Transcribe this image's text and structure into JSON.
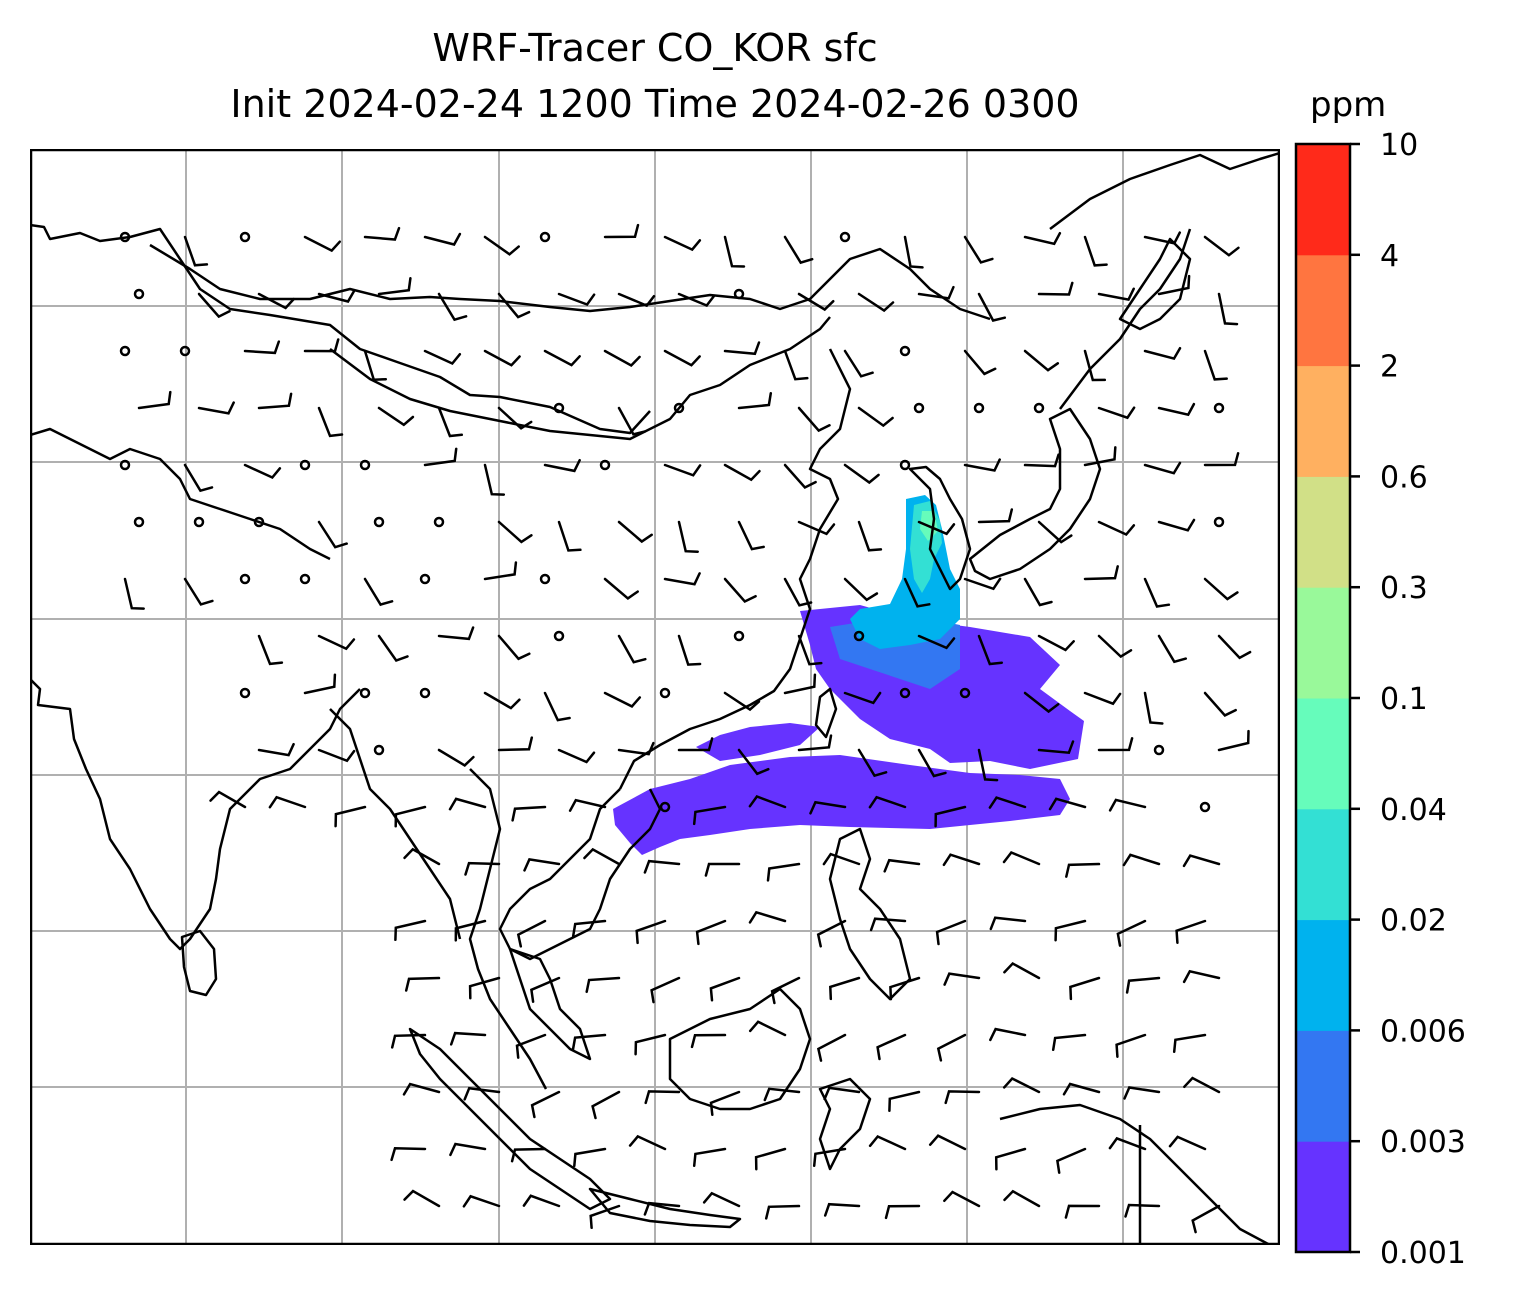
{
  "title": {
    "line1": "WRF-Tracer CO_KOR sfc",
    "line2": "Init 2024-02-24 1200 Time 2024-02-26 0300"
  },
  "colorbar": {
    "unit": "ppm",
    "levels": [
      "0.001",
      "0.003",
      "0.006",
      "0.02",
      "0.04",
      "0.1",
      "0.3",
      "0.6",
      "2",
      "4",
      "10"
    ],
    "colors": [
      "#6633ff",
      "#3377f2",
      "#00b2ee",
      "#33e0d4",
      "#66fcbb",
      "#99f99a",
      "#d1e087",
      "#ffb060",
      "#ff7540",
      "#ff2a1a"
    ]
  },
  "map": {
    "gridlines": true,
    "features": [
      "coastlines",
      "country-borders",
      "wind-barbs",
      "co-tracer-plume"
    ]
  }
}
